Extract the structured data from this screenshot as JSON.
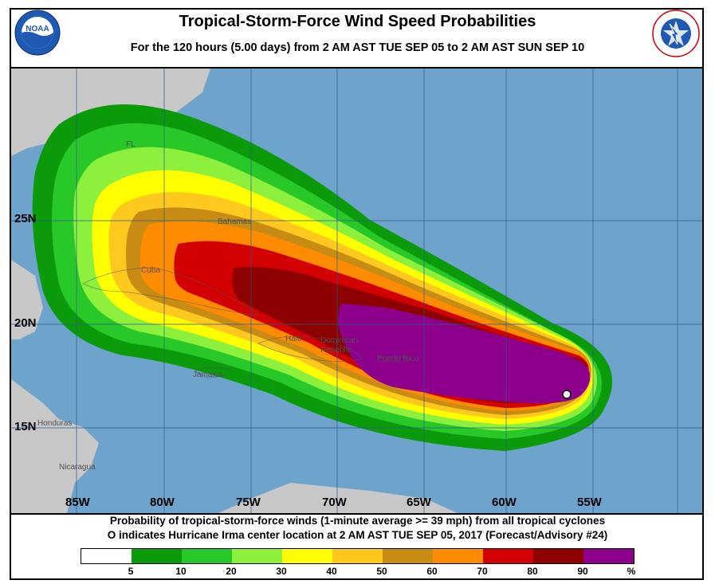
{
  "header": {
    "title": "Tropical-Storm-Force Wind Speed Probabilities",
    "subtitle": "For the 120 hours (5.00 days) from 2 AM AST TUE SEP 05 to 2 AM AST SUN SEP 10",
    "left_logo_text": "NOAA",
    "right_logo_text": "NATIONAL WEATHER SERVICE"
  },
  "map": {
    "ocean_color": "#6ea3cc",
    "land_color": "#c8c8c8",
    "latitude_labels": [
      "25N",
      "20N",
      "15N"
    ],
    "longitude_labels": [
      "85W",
      "80W",
      "75W",
      "70W",
      "65W",
      "60W",
      "55W"
    ],
    "place_labels": [
      "FL",
      "Bahamas",
      "Cuba",
      "Haiti",
      "Dominican Republic",
      "Puerto Rico",
      "Jamaica",
      "Honduras",
      "Nicaragua"
    ],
    "storm_center": {
      "name": "Hurricane Irma",
      "lat": 16.8,
      "lon": 56.5
    }
  },
  "footer": {
    "line1": "Probability of tropical-storm-force winds (1-minute average >= 39 mph) from all tropical cyclones",
    "line2_marker": "O",
    "line2": "indicates Hurricane Irma center location at 2 AM AST TUE SEP 05, 2017 (Forecast/Advisory #24)"
  },
  "legend": {
    "colors": [
      "#ffffff",
      "#0a9a0a",
      "#28c828",
      "#8cf03c",
      "#ffff00",
      "#ffc81e",
      "#c88c14",
      "#ff8c00",
      "#d20000",
      "#8c0000",
      "#8c008c"
    ],
    "labels": [
      "5",
      "10",
      "20",
      "30",
      "40",
      "50",
      "60",
      "70",
      "80",
      "90",
      "%"
    ]
  }
}
